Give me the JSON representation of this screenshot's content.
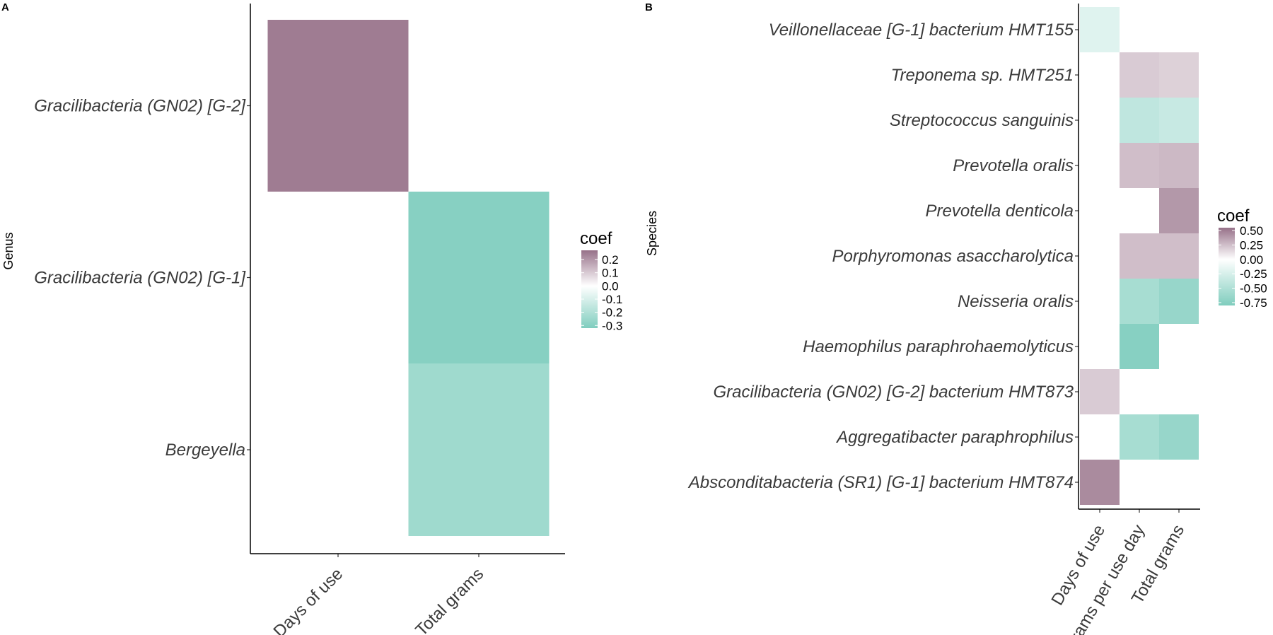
{
  "chart_data": [
    {
      "type": "heatmap",
      "panel_label": "A",
      "title": "",
      "xlabel": "",
      "ylabel": "Genus",
      "x_categories": [
        "Days of use",
        "Total grams"
      ],
      "y_categories": [
        "Gracilibacteria (GN02) [G-2]",
        "Gracilibacteria (GN02) [G-1]",
        "Bergeyella"
      ],
      "cells": [
        {
          "x": "Days of use",
          "y": "Gracilibacteria (GN02) [G-2]",
          "value": 0.25
        },
        {
          "x": "Total grams",
          "y": "Gracilibacteria (GN02) [G-1]",
          "value": -0.3
        },
        {
          "x": "Total grams",
          "y": "Bergeyella",
          "value": -0.24
        }
      ],
      "legend": {
        "title": "coef",
        "range": [
          -0.32,
          0.27
        ],
        "ticks": [
          0.2,
          0.1,
          0.0,
          -0.1,
          -0.2,
          -0.3
        ],
        "tick_labels": [
          "0.2",
          "0.1",
          "0.0",
          "-0.1",
          "-0.2",
          "-0.3"
        ]
      }
    },
    {
      "type": "heatmap",
      "panel_label": "B",
      "title": "",
      "xlabel": "",
      "ylabel": "Species",
      "x_categories": [
        "Days of use",
        "Grams per use day",
        "Total grams"
      ],
      "y_categories": [
        "Veillonellaceae [G-1] bacterium HMT155",
        "Treponema sp. HMT251",
        "Streptococcus sanguinis",
        "Prevotella oralis",
        "Prevotella denticola",
        "Porphyromonas asaccharolytica",
        "Neisseria oralis",
        "Haemophilus paraphrohaemolyticus",
        "Gracilibacteria (GN02) [G-2] bacterium HMT873",
        "Aggregatibacter paraphrophilus",
        "Absconditabacteria (SR1) [G-1] bacterium HMT874"
      ],
      "cells": [
        {
          "x": "Days of use",
          "y": "Veillonellaceae [G-1] bacterium HMT155",
          "value": -0.2
        },
        {
          "x": "Grams per use day",
          "y": "Treponema sp. HMT251",
          "value": 0.2
        },
        {
          "x": "Total grams",
          "y": "Treponema sp. HMT251",
          "value": 0.18
        },
        {
          "x": "Grams per use day",
          "y": "Streptococcus sanguinis",
          "value": -0.4
        },
        {
          "x": "Total grams",
          "y": "Streptococcus sanguinis",
          "value": -0.35
        },
        {
          "x": "Grams per use day",
          "y": "Prevotella oralis",
          "value": 0.25
        },
        {
          "x": "Total grams",
          "y": "Prevotella oralis",
          "value": 0.27
        },
        {
          "x": "Total grams",
          "y": "Prevotella denticola",
          "value": 0.4
        },
        {
          "x": "Grams per use day",
          "y": "Porphyromonas asaccharolytica",
          "value": 0.25
        },
        {
          "x": "Total grams",
          "y": "Porphyromonas asaccharolytica",
          "value": 0.25
        },
        {
          "x": "Grams per use day",
          "y": "Neisseria oralis",
          "value": -0.55
        },
        {
          "x": "Total grams",
          "y": "Neisseria oralis",
          "value": -0.65
        },
        {
          "x": "Grams per use day",
          "y": "Haemophilus paraphrohaemolyticus",
          "value": -0.75
        },
        {
          "x": "Days of use",
          "y": "Gracilibacteria (GN02) [G-2] bacterium HMT873",
          "value": 0.2
        },
        {
          "x": "Grams per use day",
          "y": "Aggregatibacter paraphrophilus",
          "value": -0.55
        },
        {
          "x": "Total grams",
          "y": "Aggregatibacter paraphrophilus",
          "value": -0.65
        },
        {
          "x": "Days of use",
          "y": "Absconditabacteria (SR1) [G-1] bacterium HMT874",
          "value": 0.45
        }
      ],
      "legend": {
        "title": "coef",
        "range": [
          -0.8,
          0.55
        ],
        "ticks": [
          0.5,
          0.25,
          0.0,
          -0.25,
          -0.5,
          -0.75
        ],
        "tick_labels": [
          "0.50",
          "0.25",
          "0.00",
          "-0.25",
          "-0.50",
          "-0.75"
        ]
      }
    }
  ],
  "colors": {
    "high": "#977189",
    "mid": "#ffffff",
    "low": "#7fcdbe",
    "axis": "#000000"
  }
}
